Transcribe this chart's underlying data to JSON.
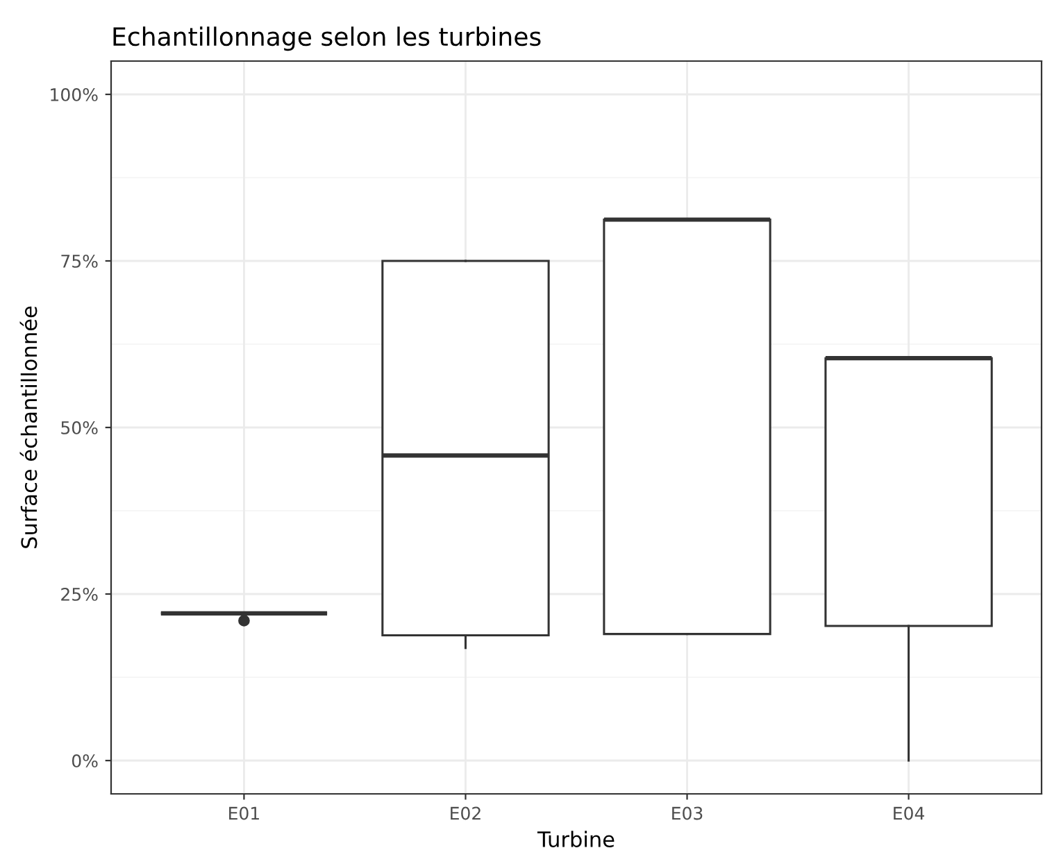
{
  "chart_data": {
    "type": "box",
    "title": "Echantillonnage selon les turbines",
    "xlabel": "Turbine",
    "ylabel": "Surface échantillonnée",
    "categories": [
      "E01",
      "E02",
      "E03",
      "E04"
    ],
    "boxes": [
      {
        "low": 22.1,
        "q1": 22.1,
        "median": 22.1,
        "q3": 22.1,
        "high": 22.1,
        "outliers": [
          21.0
        ]
      },
      {
        "low": 16.9,
        "q1": 18.8,
        "median": 45.8,
        "q3": 75.0,
        "high": 75.0
      },
      {
        "low": 19.0,
        "q1": 19.0,
        "median": 81.2,
        "q3": 81.2,
        "high": 81.2
      },
      {
        "low": 0,
        "q1": 20.2,
        "median": 60.4,
        "q3": 60.4,
        "high": 60.4
      }
    ],
    "ylim": [
      -5,
      105
    ],
    "yticks": [
      {
        "value": 0,
        "label": "0%"
      },
      {
        "value": 25,
        "label": "25%"
      },
      {
        "value": 50,
        "label": "50%"
      },
      {
        "value": 75,
        "label": "75%"
      },
      {
        "value": 100,
        "label": "100%"
      }
    ],
    "grid": true
  }
}
